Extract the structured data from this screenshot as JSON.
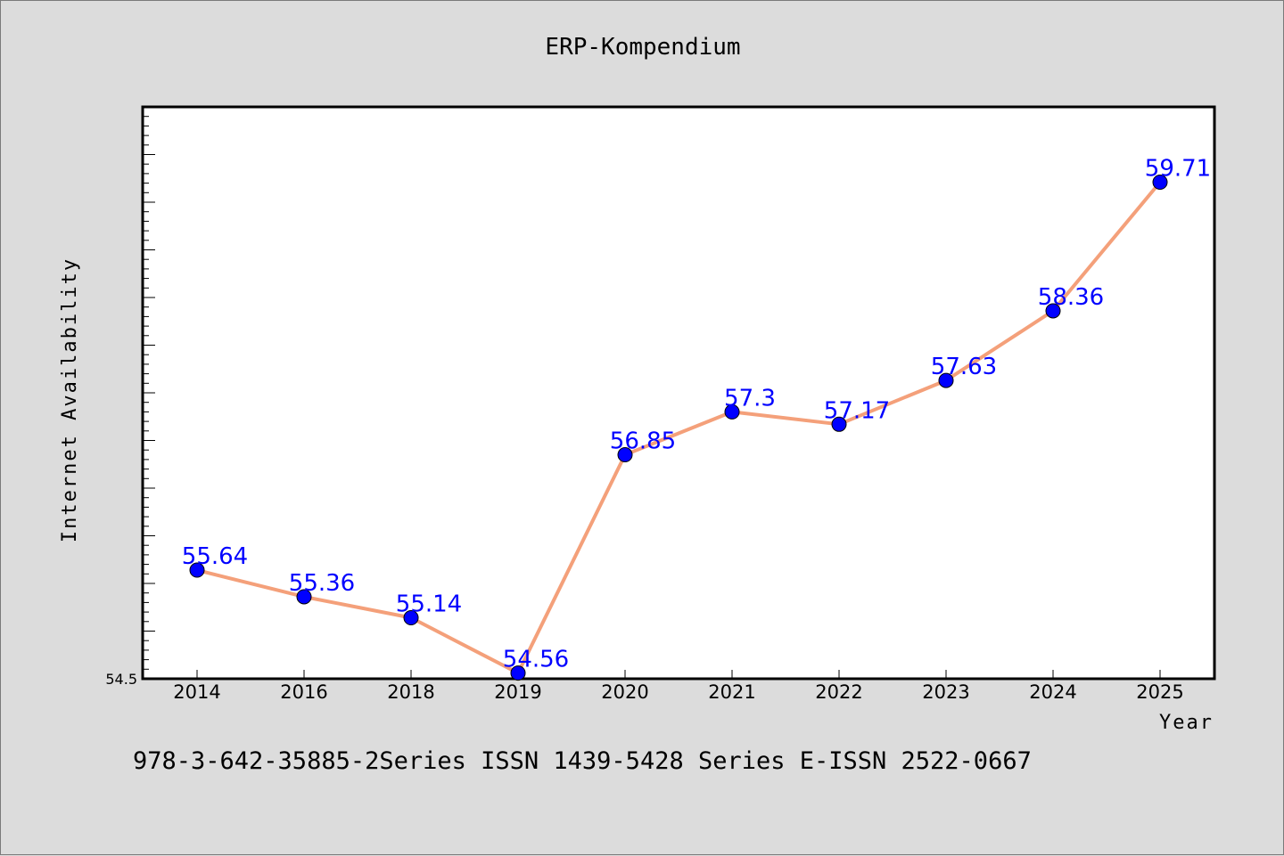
{
  "chart_data": {
    "type": "line",
    "title": "ERP-Kompendium",
    "xlabel": "Year",
    "ylabel": "Internet Availability",
    "categories": [
      "2014",
      "2016",
      "2018",
      "2019",
      "2020",
      "2021",
      "2022",
      "2023",
      "2024",
      "2025"
    ],
    "series": [
      {
        "values": [
          55.64,
          55.36,
          55.14,
          54.56,
          56.85,
          57.3,
          57.17,
          57.63,
          58.36,
          59.71
        ],
        "data_labels": [
          "55.64",
          "55.36",
          "55.14",
          "54.56",
          "56.85",
          "57.3",
          "57.17",
          "57.63",
          "58.36",
          "59.71"
        ],
        "line_color": "#f4a07a",
        "marker_color": "#0000ff"
      }
    ],
    "ylim": [
      54.5,
      60.5
    ],
    "ytick_labels": [
      "54.5"
    ],
    "grid": false,
    "legend": "none"
  },
  "footer_text": "978-3-642-35885-2Series ISSN 1439-5428 Series E-ISSN 2522-0667",
  "colors": {
    "background": "#dcdcdc",
    "plot_area": "#ffffff",
    "line": "#f4a07a",
    "marker": "#0000ff",
    "data_label": "#0000ff"
  }
}
